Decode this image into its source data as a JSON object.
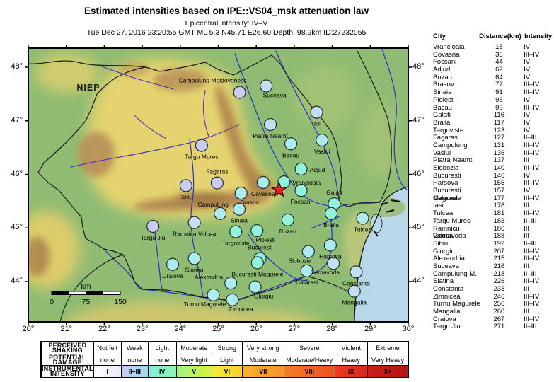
{
  "header": {
    "title": "Estimated intensities based on IPE::VS04_msk attenuation law",
    "subtitle": "Epicentral intensity: IV–V",
    "event_line": "Tue Dec 27, 2016 23:20:55 GMT ML 5.3 N45.71 E26.60 Depth: 98.9km ID:27232055"
  },
  "map": {
    "watermark": "NIEP",
    "scale_bar": {
      "unit": "km",
      "ticks": [
        "0",
        "75",
        "150"
      ]
    },
    "lon_ticks": [
      "20°",
      "21°",
      "22°",
      "23°",
      "24°",
      "25°",
      "26°",
      "27°",
      "28°",
      "29°",
      "30°"
    ],
    "lat_ticks": [
      "48°",
      "47°",
      "46°",
      "45°",
      "44°"
    ],
    "epicenter": {
      "lon": 26.6,
      "lat": 45.71,
      "symbol": "red-star"
    },
    "intensity_colors": {
      "IV": "#90F4DC",
      "III–IV": "#ACEBF0",
      "III": "#C2DFF4",
      "II–III": "#C8CBF2"
    },
    "cities": [
      {
        "name": "Vrancioaia",
        "lon": 26.73,
        "lat": 45.86,
        "intensity": "IV",
        "label_pos": "right"
      },
      {
        "name": "Covasna",
        "lon": 26.18,
        "lat": 45.85,
        "intensity": "III–IV",
        "label_pos": "below"
      },
      {
        "name": "Focsani",
        "lon": 27.18,
        "lat": 45.7,
        "intensity": "IV",
        "label_pos": "below"
      },
      {
        "name": "Adjud",
        "lon": 27.18,
        "lat": 46.1,
        "intensity": "IV",
        "label_pos": "right"
      },
      {
        "name": "Buzau",
        "lon": 26.83,
        "lat": 45.15,
        "intensity": "IV",
        "label_pos": "below"
      },
      {
        "name": "Brasov",
        "lon": 25.6,
        "lat": 45.65,
        "intensity": "III–IV",
        "label_pos": "below-right"
      },
      {
        "name": "Sinaia",
        "lon": 25.55,
        "lat": 45.35,
        "intensity": "III–IV",
        "label_pos": "below"
      },
      {
        "name": "Ploiesti",
        "lon": 26.02,
        "lat": 44.95,
        "intensity": "IV",
        "label_pos": "below-right"
      },
      {
        "name": "Bacau",
        "lon": 26.91,
        "lat": 46.57,
        "intensity": "III–IV",
        "label_pos": "below"
      },
      {
        "name": "Galati",
        "lon": 28.05,
        "lat": 45.45,
        "intensity": "IV",
        "label_pos": "above"
      },
      {
        "name": "Braila",
        "lon": 27.97,
        "lat": 45.27,
        "intensity": "IV",
        "label_pos": "below"
      },
      {
        "name": "Targoviste",
        "lon": 25.46,
        "lat": 44.93,
        "intensity": "IV",
        "label_pos": "below"
      },
      {
        "name": "Fagaras",
        "lon": 24.97,
        "lat": 45.84,
        "intensity": "II–III",
        "label_pos": "above"
      },
      {
        "name": "Campulung",
        "lon": 25.05,
        "lat": 45.27,
        "intensity": "III–IV",
        "label_pos": "above-left"
      },
      {
        "name": "Vaslui",
        "lon": 27.73,
        "lat": 46.64,
        "intensity": "III–IV",
        "label_pos": "below"
      },
      {
        "name": "Piatra Neamt",
        "lon": 26.37,
        "lat": 46.93,
        "intensity": "III",
        "label_pos": "below"
      },
      {
        "name": "Slobozia",
        "lon": 27.37,
        "lat": 44.56,
        "intensity": "III–IV",
        "label_pos": "below-left"
      },
      {
        "name": "Bucuresti",
        "lon": 26.1,
        "lat": 44.43,
        "intensity": "IV",
        "label_pos": "above"
      },
      {
        "name": "Harsova",
        "lon": 27.95,
        "lat": 44.68,
        "intensity": "III–IV",
        "label_pos": "below"
      },
      {
        "name": "Bucuresti Magurele",
        "lon": 26.03,
        "lat": 44.35,
        "intensity": "IV",
        "label_pos": "below"
      },
      {
        "name": "Calarasi",
        "lon": 27.33,
        "lat": 44.2,
        "intensity": "III–IV",
        "label_pos": "below"
      },
      {
        "name": "Iasi",
        "lon": 27.59,
        "lat": 47.16,
        "intensity": "III",
        "label_pos": "below"
      },
      {
        "name": "Tulcea",
        "lon": 28.8,
        "lat": 45.18,
        "intensity": "III–IV",
        "label_pos": "below"
      },
      {
        "name": "Targu Mures",
        "lon": 24.56,
        "lat": 46.54,
        "intensity": "II–III",
        "label_pos": "below"
      },
      {
        "name": "Ramnicu Valcea",
        "lon": 24.37,
        "lat": 45.1,
        "intensity": "III",
        "label_pos": "below"
      },
      {
        "name": "Cernavoda",
        "lon": 28.03,
        "lat": 44.34,
        "intensity": "III",
        "label_pos": "below-left"
      },
      {
        "name": "Sibiu",
        "lon": 24.15,
        "lat": 45.79,
        "intensity": "II–III",
        "label_pos": "below"
      },
      {
        "name": "Giurgiu",
        "lon": 25.97,
        "lat": 43.9,
        "intensity": "III–IV",
        "label_pos": "below-right"
      },
      {
        "name": "Alexandria",
        "lon": 25.33,
        "lat": 43.97,
        "intensity": "III–IV",
        "label_pos": "left-above"
      },
      {
        "name": "Suceava",
        "lon": 26.26,
        "lat": 47.65,
        "intensity": "III",
        "label_pos": "below-right"
      },
      {
        "name": "Campulung Moldovenesc",
        "lon": 25.56,
        "lat": 47.53,
        "intensity": "II–III",
        "label_pos": "above-left-far"
      },
      {
        "name": "Slatina",
        "lon": 24.37,
        "lat": 44.43,
        "intensity": "III–IV",
        "label_pos": "below"
      },
      {
        "name": "Constanta",
        "lon": 28.63,
        "lat": 44.18,
        "intensity": "III",
        "label_pos": "below"
      },
      {
        "name": "Zimnicea",
        "lon": 25.37,
        "lat": 43.66,
        "intensity": "III–IV",
        "label_pos": "below-right"
      },
      {
        "name": "Turnu Magurele",
        "lon": 24.87,
        "lat": 43.75,
        "intensity": "III–IV",
        "label_pos": "below-left"
      },
      {
        "name": "Mangalia",
        "lon": 28.58,
        "lat": 43.82,
        "intensity": "III",
        "label_pos": "below"
      },
      {
        "name": "Craiova",
        "lon": 23.8,
        "lat": 44.32,
        "intensity": "III–IV",
        "label_pos": "below"
      },
      {
        "name": "Targu Jiu",
        "lon": 23.28,
        "lat": 45.03,
        "intensity": "II–III",
        "label_pos": "below"
      }
    ]
  },
  "city_table": {
    "columns": [
      "City",
      "Distance(km)",
      "Intensity"
    ],
    "rows": [
      [
        "Vrancioaia",
        "18",
        "IV"
      ],
      [
        "Covasna",
        "36",
        "III–IV"
      ],
      [
        "Focsani",
        "44",
        "IV"
      ],
      [
        "Adjud",
        "62",
        "IV"
      ],
      [
        "Buzau",
        "64",
        "IV"
      ],
      [
        "Brasov",
        "77",
        "III–IV"
      ],
      [
        "Sinaia",
        "91",
        "III–IV"
      ],
      [
        "Ploiesti",
        "96",
        "IV"
      ],
      [
        "Bacau",
        "99",
        "III–IV"
      ],
      [
        "Galati",
        "116",
        "IV"
      ],
      [
        "Braila",
        "117",
        "IV"
      ],
      [
        "Targoviste",
        "123",
        "IV"
      ],
      [
        "Fagaras",
        "127",
        "II–III"
      ],
      [
        "Campulung",
        "131",
        "III–IV"
      ],
      [
        "Vaslui",
        "136",
        "III–IV"
      ],
      [
        "Piatra Neamt",
        "137",
        "III"
      ],
      [
        "Slobozia",
        "140",
        "III–IV"
      ],
      [
        "Bucuresti",
        "146",
        "IV"
      ],
      [
        "Harsova",
        "155",
        "III–IV"
      ],
      [
        "Bucuresti Magurele",
        "157",
        "IV"
      ],
      [
        "Calarasi",
        "177",
        "III–IV"
      ],
      [
        "Iasi",
        "178",
        "III"
      ],
      [
        "Tulcea",
        "181",
        "III–IV"
      ],
      [
        "Targu Mures",
        "183",
        "II–III"
      ],
      [
        "Ramnicu Valcea",
        "186",
        "III"
      ],
      [
        "Cernavoda",
        "188",
        "III"
      ],
      [
        "Sibiu",
        "192",
        "II–III"
      ],
      [
        "Giurgiu",
        "207",
        "III–IV"
      ],
      [
        "Alexandria",
        "215",
        "III–IV"
      ],
      [
        "Suceava",
        "216",
        "III"
      ],
      [
        "Campulung M.",
        "218",
        "II–III"
      ],
      [
        "Slatina",
        "226",
        "III–IV"
      ],
      [
        "Constanta",
        "233",
        "III"
      ],
      [
        "Zimnicea",
        "246",
        "III–IV"
      ],
      [
        "Turnu Magurele",
        "256",
        "III–IV"
      ],
      [
        "Mangalia",
        "260",
        "III"
      ],
      [
        "Craiova",
        "267",
        "III–IV"
      ],
      [
        "Targu Jiu",
        "271",
        "II–III"
      ]
    ]
  },
  "legend": {
    "row_headers": [
      [
        "PERCEIVED",
        "SHAKING"
      ],
      [
        "POTENTIAL",
        "DAMAGE"
      ],
      [
        "INSTRUMENTAL",
        "INTENSITY"
      ]
    ],
    "shaking": [
      "Not felt",
      "Weak",
      "Light",
      "Moderate",
      "Strong",
      "Very strong",
      "Severe",
      "Violent",
      "Extreme"
    ],
    "damage": [
      "none",
      "none",
      "none",
      "Very light",
      "Light",
      "Moderate",
      "Moderate/Heavy",
      "Heavy",
      "Very Heavy"
    ],
    "intensity": [
      "I",
      "II–III",
      "IV",
      "V",
      "VI",
      "VII",
      "VIII",
      "IX",
      "X+"
    ],
    "intensity_cell_colors": [
      [
        "#FFFFFF",
        "#E9E9FB"
      ],
      [
        "#C7CBF4",
        "#9FDBEE"
      ],
      [
        "#7FF2DA",
        "#8BF3B3"
      ],
      [
        "#9DF57E",
        "#D7F43C"
      ],
      [
        "#F6EC35",
        "#F6CF2F"
      ],
      [
        "#F6B12D",
        "#F5932A"
      ],
      [
        "#F57F28",
        "#EC5220"
      ],
      [
        "#EF3B22",
        "#DA2A1D"
      ],
      [
        "#C92219",
        "#B2150E"
      ]
    ]
  }
}
